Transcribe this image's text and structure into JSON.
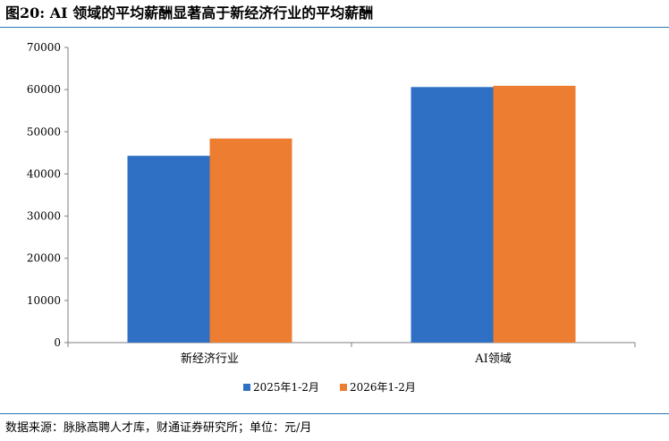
{
  "title": "图20: AI 领域的平均薪酬显著高于新经济行业的平均薪酬",
  "source": "数据来源：脉脉高聘人才库，财通证券研究所；单位：元/月",
  "colors": {
    "accent": "#2e75b6",
    "series1": "#3070c4",
    "series2": "#ed7d31"
  },
  "chart_data": {
    "type": "bar",
    "title": "",
    "xlabel": "",
    "ylabel": "",
    "categories": [
      "新经济行业",
      "AI领域"
    ],
    "series": [
      {
        "name": "2025年1-2月",
        "values": [
          44300,
          60600
        ]
      },
      {
        "name": "2026年1-2月",
        "values": [
          48400,
          60900
        ]
      }
    ],
    "ylim": [
      0,
      70000
    ],
    "yticks": [
      "0",
      "10000",
      "20000",
      "30000",
      "40000",
      "50000",
      "60000",
      "70000"
    ],
    "grid": false,
    "legend": "bottom"
  }
}
